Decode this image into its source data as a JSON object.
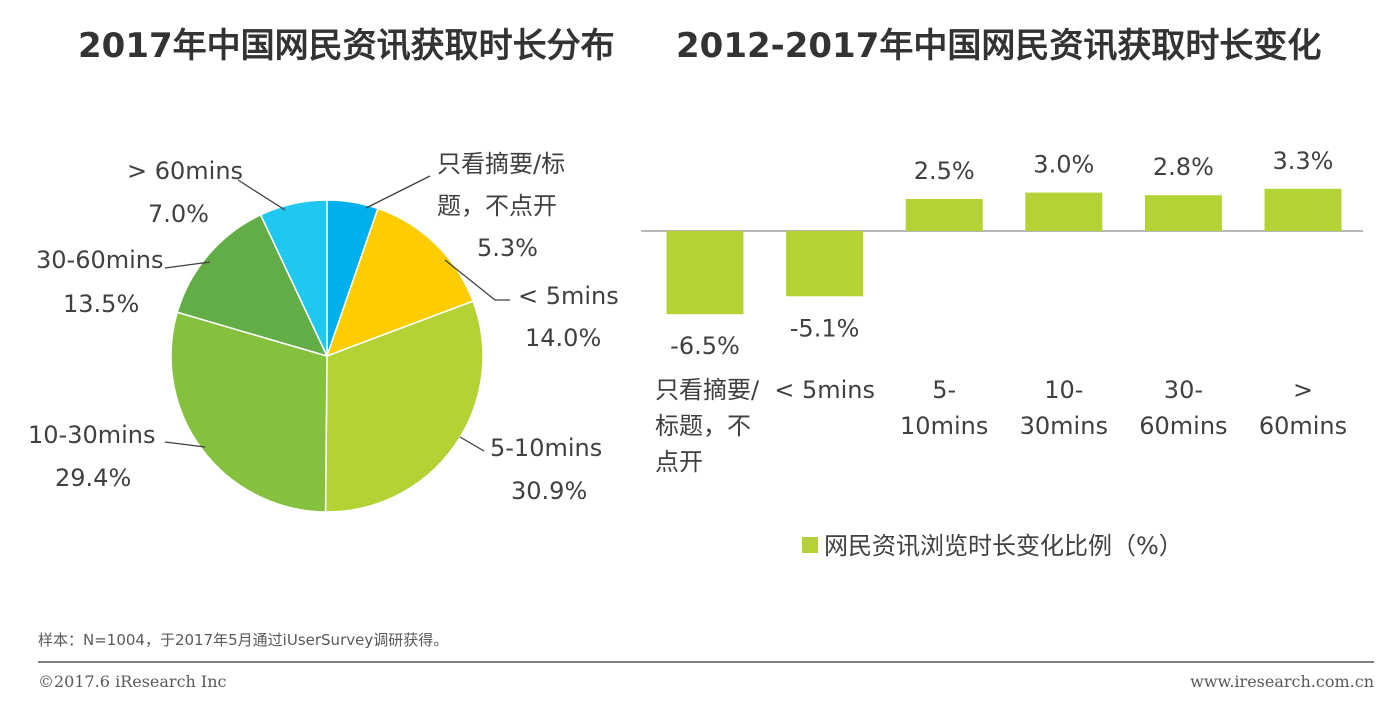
{
  "colors": {
    "bar": "#b3d334",
    "pie": [
      "#00b0ec",
      "#ffcc00",
      "#b3d334",
      "#86c03f",
      "#62ad46",
      "#1ec8f0"
    ],
    "text": "#404040",
    "leader": "#404040"
  },
  "chart_data": [
    {
      "type": "pie",
      "title": "2017年中国网民资讯获取时长分布",
      "slices": [
        {
          "label_lines": [
            "只看摘要/标",
            "题，不点开"
          ],
          "pct_text": "5.3%",
          "value": 5.3
        },
        {
          "label_lines": [
            "< 5mins"
          ],
          "pct_text": "14.0%",
          "value": 14.0
        },
        {
          "label_lines": [
            "5-10mins"
          ],
          "pct_text": "30.9%",
          "value": 30.9
        },
        {
          "label_lines": [
            "10-30mins"
          ],
          "pct_text": "29.4%",
          "value": 29.4
        },
        {
          "label_lines": [
            "30-60mins"
          ],
          "pct_text": "13.5%",
          "value": 13.5
        },
        {
          "label_lines": [
            "> 60mins"
          ],
          "pct_text": "7.0%",
          "value": 7.0
        }
      ]
    },
    {
      "type": "bar",
      "title": "2012-2017年中国网民资讯获取时长变化",
      "categories": [
        [
          "只看摘要/",
          "标题，不",
          "点开"
        ],
        [
          "< 5mins"
        ],
        [
          "5-",
          "10mins"
        ],
        [
          "10-",
          "30mins"
        ],
        [
          "30-",
          "60mins"
        ],
        [
          ">",
          "60mins"
        ]
      ],
      "values": [
        -6.5,
        -5.1,
        2.5,
        3.0,
        2.8,
        3.3
      ],
      "value_labels": [
        "-6.5%",
        "-5.1%",
        "2.5%",
        "3.0%",
        "2.8%",
        "3.3%"
      ],
      "legend": "网民资讯浏览时长变化比例（%）",
      "ylim": [
        -6.5,
        3.3
      ]
    }
  ],
  "footer": {
    "note": "样本：N=1004，于2017年5月通过iUserSurvey调研获得。",
    "copyright": "©2017.6 iResearch Inc",
    "site": "www.iresearch.com.cn"
  }
}
